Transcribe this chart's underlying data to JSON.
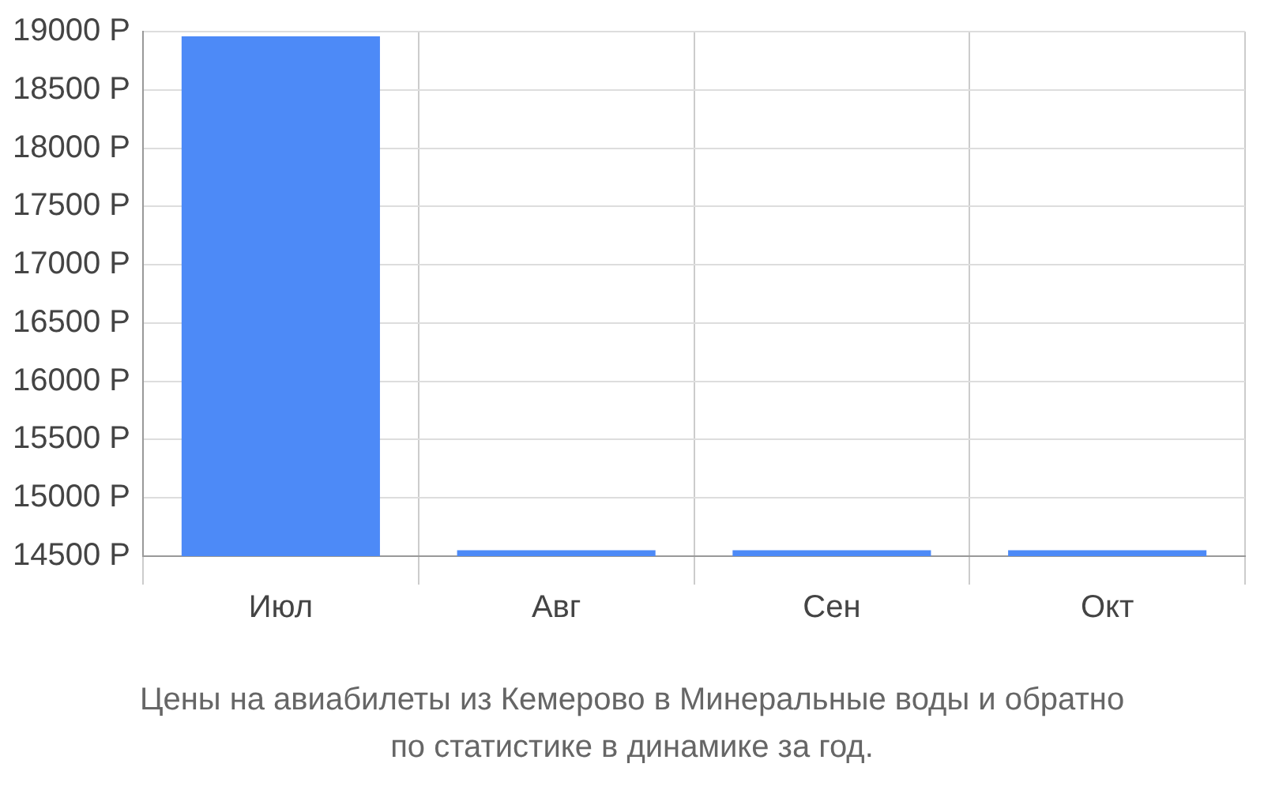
{
  "chart_data": {
    "type": "bar",
    "categories": [
      "Июл",
      "Авг",
      "Сен",
      "Окт"
    ],
    "values": [
      18960,
      14550,
      14550,
      14550
    ],
    "color": "#4d8af7",
    "ylim": [
      14500,
      19000
    ],
    "yticks": [
      {
        "value": 14500,
        "label": "14500 Р"
      },
      {
        "value": 15000,
        "label": "15000 Р"
      },
      {
        "value": 15500,
        "label": "15500 Р"
      },
      {
        "value": 16000,
        "label": "16000 Р"
      },
      {
        "value": 16500,
        "label": "16500 Р"
      },
      {
        "value": 17000,
        "label": "17000 Р"
      },
      {
        "value": 17500,
        "label": "17500 Р"
      },
      {
        "value": 18000,
        "label": "18000 Р"
      },
      {
        "value": 18500,
        "label": "18500 Р"
      },
      {
        "value": 19000,
        "label": "19000 Р"
      }
    ],
    "grid": true,
    "annotations": [
      "Цены на авиабилеты из Кемерово в Минеральные воды и обратно",
      "по статистике в динамике за год."
    ]
  }
}
